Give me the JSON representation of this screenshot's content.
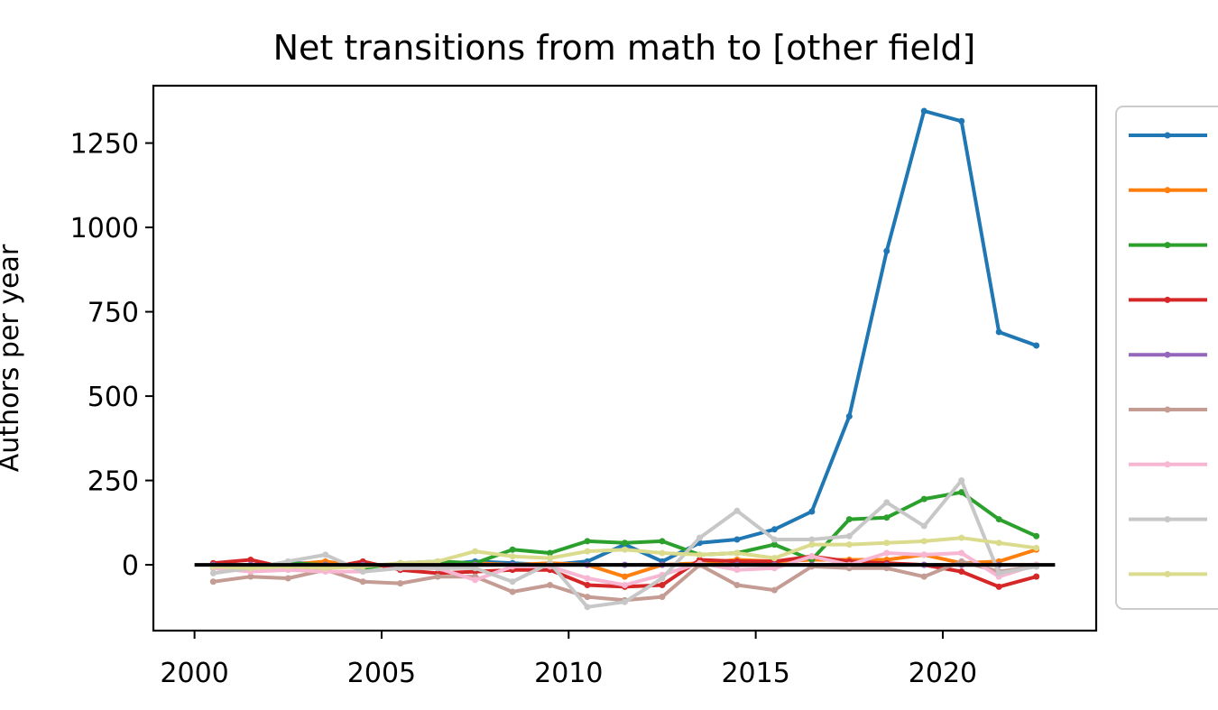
{
  "chart_data": {
    "type": "line",
    "title": "Net transitions from math to [other field]",
    "xlabel": "",
    "ylabel": "Authors per year",
    "xlim": [
      1998.9,
      2024.1
    ],
    "ylim": [
      -195,
      1420
    ],
    "xticks": [
      2000,
      2005,
      2010,
      2015,
      2020
    ],
    "yticks": [
      0,
      250,
      500,
      750,
      1000,
      1250
    ],
    "grid": false,
    "legend": {
      "position": "right",
      "labels_visible": false
    },
    "zero_line": {
      "y": 0,
      "x_range": [
        2000,
        2023
      ],
      "color": "#000000"
    },
    "x": [
      2000.5,
      2001.5,
      2002.5,
      2003.5,
      2004.5,
      2005.5,
      2006.5,
      2007.5,
      2008.5,
      2009.5,
      2010.5,
      2011.5,
      2012.5,
      2013.5,
      2014.5,
      2015.5,
      2016.5,
      2017.5,
      2018.5,
      2019.5,
      2020.5,
      2021.5,
      2022.5
    ],
    "series": [
      {
        "color": "#1f77b4",
        "values": [
          -10,
          -5,
          5,
          5,
          -5,
          0,
          0,
          10,
          5,
          0,
          10,
          60,
          10,
          65,
          75,
          105,
          158,
          440,
          930,
          1345,
          1315,
          690,
          650
        ]
      },
      {
        "color": "#ff7f0e",
        "values": [
          0,
          -5,
          0,
          10,
          -5,
          0,
          0,
          5,
          0,
          5,
          0,
          -35,
          0,
          5,
          15,
          10,
          15,
          15,
          15,
          30,
          5,
          10,
          45
        ]
      },
      {
        "color": "#2ca02c",
        "values": [
          -10,
          -5,
          5,
          0,
          -10,
          5,
          10,
          5,
          45,
          35,
          70,
          65,
          70,
          30,
          35,
          60,
          15,
          135,
          140,
          195,
          215,
          135,
          85
        ]
      },
      {
        "color": "#d62728",
        "values": [
          5,
          15,
          -10,
          -10,
          10,
          -15,
          -25,
          -20,
          -15,
          -15,
          -60,
          -65,
          -60,
          15,
          10,
          10,
          25,
          10,
          5,
          0,
          -20,
          -65,
          -35
        ]
      },
      {
        "color": "#9467bd",
        "values": [
          0,
          0,
          0,
          0,
          0,
          0,
          0,
          0,
          0,
          0,
          0,
          0,
          0,
          0,
          0,
          0,
          0,
          0,
          0,
          0,
          0,
          0,
          0
        ]
      },
      {
        "color": "#c49c94",
        "values": [
          -50,
          -35,
          -40,
          -15,
          -50,
          -55,
          -35,
          -35,
          -80,
          -60,
          -95,
          -105,
          -95,
          0,
          -60,
          -75,
          -5,
          -10,
          -10,
          -35,
          10,
          -20,
          -5
        ]
      },
      {
        "color": "#f7b6d2",
        "values": [
          -10,
          -20,
          -15,
          -20,
          -20,
          -10,
          -10,
          -45,
          -5,
          -5,
          -40,
          -60,
          -30,
          5,
          -15,
          -10,
          25,
          0,
          35,
          30,
          35,
          -35,
          0
        ]
      },
      {
        "color": "#c7c7c7",
        "values": [
          -25,
          -10,
          10,
          30,
          -20,
          -10,
          -10,
          -10,
          -50,
          5,
          -125,
          -110,
          -40,
          80,
          160,
          75,
          75,
          85,
          185,
          115,
          250,
          -25,
          -5
        ]
      },
      {
        "color": "#dbdb8d",
        "values": [
          -5,
          -10,
          -5,
          -10,
          -5,
          5,
          10,
          40,
          25,
          20,
          40,
          45,
          35,
          30,
          35,
          20,
          60,
          60,
          65,
          70,
          80,
          65,
          50
        ]
      }
    ]
  }
}
